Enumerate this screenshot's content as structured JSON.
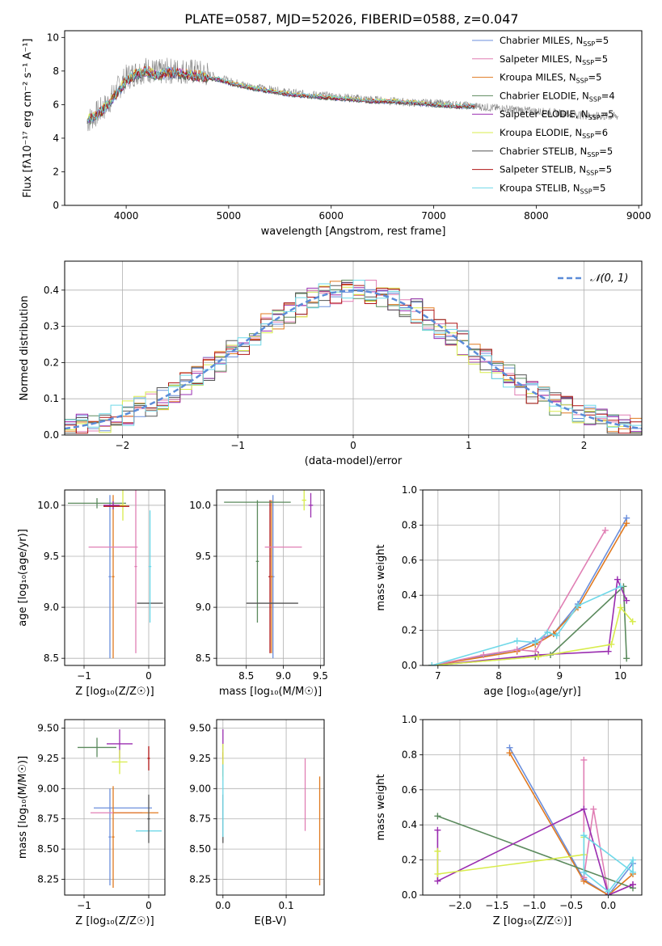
{
  "title": "PLATE=0587, MJD=52026, FIBERID=0588, z=0.047",
  "colors": {
    "Chabrier MILES": "#6b8fdc",
    "Salpeter MILES": "#e07fb4",
    "Kroupa MILES": "#e0791f",
    "Chabrier ELODIE": "#5b8a5d",
    "Salpeter ELODIE": "#9a2db0",
    "Kroupa ELODIE": "#d8ec4c",
    "Chabrier STELIB": "#555555",
    "Salpeter STELIB": "#b01515",
    "Kroupa STELIB": "#6fd8e8",
    "grid": "#b0b0b0"
  },
  "chart_data": [
    {
      "id": "spectrum",
      "type": "line",
      "xlabel": "wavelength [Angstrom, rest frame]",
      "ylabel": "Flux [f_λ10^-17 erg cm^-2 s^-1 A^-1]",
      "xlim": [
        3400,
        9030
      ],
      "ylim": [
        0,
        10.4
      ],
      "xticks": [
        4000,
        5000,
        6000,
        7000,
        8000,
        9000
      ],
      "yticks": [
        0,
        2,
        4,
        6,
        8,
        10
      ],
      "grid": false,
      "legend_position": "top-right",
      "legend": [
        {
          "model": "Chabrier MILES",
          "text": "Chabrier MILES, N",
          "sub": "SSP",
          "tail": "=5"
        },
        {
          "model": "Salpeter MILES",
          "text": "Salpeter MILES, N",
          "sub": "SSP",
          "tail": "=5"
        },
        {
          "model": "Kroupa MILES",
          "text": "Kroupa MILES, N",
          "sub": "SSP",
          "tail": "=5"
        },
        {
          "model": "Chabrier ELODIE",
          "text": "Chabrier ELODIE, N",
          "sub": "SSP",
          "tail": "=4"
        },
        {
          "model": "Salpeter ELODIE",
          "text": "Salpeter ELODIE, N",
          "sub": "SSP",
          "tail": "=5"
        },
        {
          "model": "Kroupa ELODIE",
          "text": "Kroupa ELODIE, N",
          "sub": "SSP",
          "tail": "=6"
        },
        {
          "model": "Chabrier STELIB",
          "text": "Chabrier STELIB, N",
          "sub": "SSP",
          "tail": "=5"
        },
        {
          "model": "Salpeter STELIB",
          "text": "Salpeter STELIB, N",
          "sub": "SSP",
          "tail": "=5"
        },
        {
          "model": "Kroupa STELIB",
          "text": "Kroupa STELIB, N",
          "sub": "SSP",
          "tail": "=5"
        }
      ],
      "data_x": [
        3620,
        3700,
        3800,
        3900,
        4000,
        4100,
        4200,
        4300,
        4400,
        4500,
        4600,
        4700,
        4800,
        4900,
        5000,
        5200,
        5400,
        5600,
        5800,
        6000,
        6200,
        6400,
        6600,
        6800,
        7000,
        7200,
        7400,
        7600,
        7800,
        8000,
        8200,
        8400,
        8600,
        8800
      ],
      "data_y": [
        5.0,
        5.4,
        5.9,
        6.8,
        7.6,
        7.9,
        8.1,
        7.9,
        8.0,
        8.0,
        8.0,
        7.9,
        7.8,
        7.6,
        7.4,
        7.1,
        6.9,
        6.7,
        6.6,
        6.5,
        6.4,
        6.3,
        6.2,
        6.1,
        6.1,
        6.0,
        5.9,
        5.8,
        5.7,
        5.6,
        5.5,
        5.4,
        5.3,
        5.3
      ],
      "model_x": [
        3620,
        3700,
        3800,
        3900,
        4000,
        4100,
        4200,
        4300,
        4400,
        4500,
        4600,
        4700,
        4800,
        4900,
        5000,
        5200,
        5400,
        5600,
        5800,
        6000,
        6200,
        6400,
        6600,
        6800,
        7000,
        7200,
        7400
      ],
      "model_y": [
        5.1,
        5.3,
        5.8,
        6.6,
        7.4,
        7.8,
        8.0,
        7.7,
        7.9,
        7.9,
        7.8,
        7.7,
        7.6,
        7.5,
        7.3,
        7.0,
        6.8,
        6.6,
        6.5,
        6.4,
        6.3,
        6.2,
        6.2,
        6.1,
        6.0,
        5.9,
        5.9
      ],
      "data_color": "#888888"
    },
    {
      "id": "residuals",
      "type": "histogram",
      "xlabel": "(data-model)/error",
      "ylabel": "Normed distribution",
      "xlim": [
        -2.5,
        2.5
      ],
      "ylim": [
        0,
        0.48
      ],
      "xticks": [
        -2,
        -1,
        0,
        1,
        2
      ],
      "yticks": [
        0.0,
        0.1,
        0.2,
        0.3,
        0.4
      ],
      "grid": true,
      "legend_position": "top-right",
      "legend_label": "𝒩(0, 1)",
      "gaussian": {
        "mean": 0,
        "sigma": 1,
        "color": "#5b8bd8"
      },
      "bin_width": 0.1
    },
    {
      "id": "age-vs-Z",
      "type": "errorbar",
      "xlabel": "Z [log10(Z/Z☉)]",
      "ylabel": "age [log10(age/yr)]",
      "xlim": [
        -1.3,
        0.25
      ],
      "ylim": [
        8.43,
        10.15
      ],
      "xticks": [
        -1,
        0
      ],
      "yticks": [
        8.5,
        9.0,
        9.5,
        10.0
      ],
      "grid": true,
      "points": [
        {
          "model": "Chabrier MILES",
          "x": -0.6,
          "xerr": 0.02,
          "y": 9.3,
          "yerr": 0.8
        },
        {
          "model": "Kroupa MILES",
          "x": -0.55,
          "xerr": 0.02,
          "y": 9.3,
          "yerr": 0.8
        },
        {
          "model": "Salpeter MILES",
          "x": -0.55,
          "xerr": 0.38,
          "y": 9.59,
          "yerr": 0.0
        },
        {
          "model": "Salpeter MILES",
          "x": -0.2,
          "xerr": 0.02,
          "y": 9.4,
          "yerr": 0.85
        },
        {
          "model": "Chabrier ELODIE",
          "x": -0.8,
          "xerr": 0.45,
          "y": 10.02,
          "yerr": 0.05
        },
        {
          "model": "Salpeter ELODIE",
          "x": -0.55,
          "xerr": 0.15,
          "y": 10.0,
          "yerr": 0.04
        },
        {
          "model": "Kroupa ELODIE",
          "x": -0.4,
          "xerr": 0.05,
          "y": 10.0,
          "yerr": 0.15
        },
        {
          "model": "Chabrier STELIB",
          "x": 0.02,
          "xerr": 0.2,
          "y": 9.04,
          "yerr": 0.0
        },
        {
          "model": "Kroupa STELIB",
          "x": 0.02,
          "xerr": 0.02,
          "y": 9.4,
          "yerr": 0.55
        },
        {
          "model": "Salpeter STELIB",
          "x": -0.5,
          "xerr": 0.2,
          "y": 9.99,
          "yerr": 0.0
        }
      ]
    },
    {
      "id": "age-vs-mass",
      "type": "errorbar",
      "xlabel": "mass [log10(M/M☉)]",
      "ylabel": "",
      "xlim": [
        8.1,
        9.55
      ],
      "ylim": [
        8.43,
        10.15
      ],
      "xticks": [
        8.5,
        9.0,
        9.5
      ],
      "yticks": [
        8.5,
        9.0,
        9.5,
        10.0
      ],
      "grid": true,
      "points": [
        {
          "model": "Chabrier MILES",
          "x": 8.86,
          "xerr": 0.02,
          "y": 9.3,
          "yerr": 0.8
        },
        {
          "model": "Salpeter STELIB",
          "x": 8.82,
          "xerr": 0.02,
          "y": 9.3,
          "yerr": 0.75
        },
        {
          "model": "Kroupa MILES",
          "x": 8.84,
          "xerr": 0.02,
          "y": 9.3,
          "yerr": 0.75
        },
        {
          "model": "Chabrier ELODIE",
          "x": 8.65,
          "xerr": 0.02,
          "y": 9.45,
          "yerr": 0.6
        },
        {
          "model": "Salpeter MILES",
          "x": 9.0,
          "xerr": 0.25,
          "y": 9.59,
          "yerr": 0.0
        },
        {
          "model": "Chabrier STELIB",
          "x": 8.85,
          "xerr": 0.35,
          "y": 9.04,
          "yerr": 0.0
        },
        {
          "model": "Salpeter ELODIE",
          "x": 9.37,
          "xerr": 0.03,
          "y": 10.0,
          "yerr": 0.12
        },
        {
          "model": "Kroupa ELODIE",
          "x": 9.28,
          "xerr": 0.03,
          "y": 10.05,
          "yerr": 0.1
        },
        {
          "model": "Chabrier ELODIE",
          "x": 8.65,
          "xerr": 0.45,
          "y": 10.03,
          "yerr": 0.0
        }
      ]
    },
    {
      "id": "weight-vs-age",
      "type": "line",
      "xlabel": "age [log10(age/yr)]",
      "ylabel": "mass weight",
      "xlim": [
        6.75,
        10.35
      ],
      "ylim": [
        0,
        1.0
      ],
      "xticks": [
        7,
        8,
        9,
        10
      ],
      "yticks": [
        0.0,
        0.2,
        0.4,
        0.6,
        0.8,
        1.0
      ],
      "grid": true,
      "series": [
        {
          "model": "Chabrier MILES",
          "x": [
            6.9,
            8.3,
            8.6,
            8.9,
            9.3,
            10.1
          ],
          "y": [
            0.0,
            0.09,
            0.14,
            0.18,
            0.35,
            0.84
          ]
        },
        {
          "model": "Kroupa MILES",
          "x": [
            6.9,
            8.3,
            8.6,
            8.9,
            9.3,
            10.1
          ],
          "y": [
            0.0,
            0.08,
            0.12,
            0.18,
            0.33,
            0.81
          ]
        },
        {
          "model": "Salpeter MILES",
          "x": [
            6.9,
            7.75,
            8.3,
            8.6,
            9.75
          ],
          "y": [
            0.0,
            0.06,
            0.09,
            0.08,
            0.77
          ]
        },
        {
          "model": "Chabrier ELODIE",
          "x": [
            6.9,
            8.6,
            8.85,
            10.05,
            10.1
          ],
          "y": [
            0.0,
            0.05,
            0.06,
            0.45,
            0.04
          ]
        },
        {
          "model": "Salpeter ELODIE",
          "x": [
            6.9,
            8.65,
            9.8,
            9.95,
            10.1
          ],
          "y": [
            0.0,
            0.06,
            0.08,
            0.49,
            0.37
          ]
        },
        {
          "model": "Kroupa ELODIE",
          "x": [
            6.9,
            8.65,
            9.85,
            10.0,
            10.2
          ],
          "y": [
            0.0,
            0.05,
            0.12,
            0.33,
            0.25
          ]
        },
        {
          "model": "Kroupa STELIB",
          "x": [
            6.9,
            8.3,
            8.6,
            8.8,
            8.95,
            9.3,
            10.0
          ],
          "y": [
            0.0,
            0.14,
            0.13,
            0.19,
            0.17,
            0.34,
            0.45
          ]
        }
      ]
    },
    {
      "id": "mass-vs-Z",
      "type": "errorbar",
      "xlabel": "Z [log10(Z/Z☉)]",
      "ylabel": "mass [log10(M/M☉)]",
      "xlim": [
        -1.3,
        0.25
      ],
      "ylim": [
        8.12,
        9.57
      ],
      "xticks": [
        -1,
        0
      ],
      "yticks": [
        8.25,
        8.5,
        8.75,
        9.0,
        9.25,
        9.5
      ],
      "grid": true,
      "points": [
        {
          "model": "Chabrier MILES",
          "x": -0.6,
          "xerr": 0.02,
          "y": 8.6,
          "yerr": 0.4
        },
        {
          "model": "Chabrier MILES",
          "x": -0.4,
          "xerr": 0.45,
          "y": 8.84,
          "yerr": 0.0
        },
        {
          "model": "Kroupa MILES",
          "x": -0.55,
          "xerr": 0.02,
          "y": 8.6,
          "yerr": 0.42
        },
        {
          "model": "Salpeter MILES",
          "x": -0.5,
          "xerr": 0.4,
          "y": 8.8,
          "yerr": 0.0
        },
        {
          "model": "Kroupa MILES",
          "x": -0.2,
          "xerr": 0.35,
          "y": 8.8,
          "yerr": 0.0
        },
        {
          "model": "Chabrier ELODIE",
          "x": -0.8,
          "xerr": 0.3,
          "y": 9.34,
          "yerr": 0.08
        },
        {
          "model": "Salpeter ELODIE",
          "x": -0.45,
          "xerr": 0.2,
          "y": 9.37,
          "yerr": 0.12
        },
        {
          "model": "Kroupa ELODIE",
          "x": -0.45,
          "xerr": 0.12,
          "y": 9.22,
          "yerr": 0.1
        },
        {
          "model": "Salpeter STELIB",
          "x": 0.0,
          "xerr": 0.02,
          "y": 9.25,
          "yerr": 0.1
        },
        {
          "model": "Kroupa STELIB",
          "x": 0.0,
          "xerr": 0.2,
          "y": 8.65,
          "yerr": 0.0
        },
        {
          "model": "Chabrier STELIB",
          "x": 0.0,
          "xerr": 0.02,
          "y": 8.75,
          "yerr": 0.2
        }
      ]
    },
    {
      "id": "mass-vs-EBV",
      "type": "errorbar",
      "xlabel": "E(B-V)",
      "ylabel": "",
      "xlim": [
        -0.01,
        0.16
      ],
      "ylim": [
        8.12,
        9.57
      ],
      "xticks": [
        0.0,
        0.1
      ],
      "yticks": [
        8.25,
        8.5,
        8.75,
        9.0,
        9.25,
        9.5
      ],
      "grid": true,
      "points": [
        {
          "model": "Salpeter ELODIE",
          "x": 0.0,
          "xerr": 0.0,
          "y": 9.37,
          "yerr": 0.12
        },
        {
          "model": "Salpeter STELIB",
          "x": 0.0,
          "xerr": 0.0,
          "y": 9.2,
          "yerr": 0.1
        },
        {
          "model": "Kroupa ELODIE",
          "x": 0.0,
          "xerr": 0.0,
          "y": 9.22,
          "yerr": 0.15
        },
        {
          "model": "Chabrier STELIB",
          "x": 0.0,
          "xerr": 0.0,
          "y": 8.75,
          "yerr": 0.2
        },
        {
          "model": "Kroupa STELIB",
          "x": 0.0,
          "xerr": 0.0,
          "y": 8.9,
          "yerr": 0.3
        },
        {
          "model": "Salpeter MILES",
          "x": 0.13,
          "xerr": 0.0,
          "y": 8.95,
          "yerr": 0.3
        },
        {
          "model": "Kroupa MILES",
          "x": 0.153,
          "xerr": 0.0,
          "y": 8.65,
          "yerr": 0.45
        }
      ]
    },
    {
      "id": "weight-vs-Z",
      "type": "line",
      "xlabel": "Z [log10(Z/Z☉)]",
      "ylabel": "mass weight",
      "xlim": [
        -2.5,
        0.45
      ],
      "ylim": [
        0,
        1.0
      ],
      "xticks": [
        -2.0,
        -1.5,
        -1.0,
        -0.5,
        0.0
      ],
      "yticks": [
        0.0,
        0.2,
        0.4,
        0.6,
        0.8,
        1.0
      ],
      "grid": true,
      "series": [
        {
          "model": "Chabrier MILES",
          "x": [
            -1.33,
            -0.33,
            0.0,
            0.33
          ],
          "y": [
            0.84,
            0.09,
            0.0,
            0.18
          ]
        },
        {
          "model": "Kroupa MILES",
          "x": [
            -1.33,
            -0.33,
            0.0,
            0.33
          ],
          "y": [
            0.81,
            0.08,
            0.0,
            0.12
          ]
        },
        {
          "model": "Salpeter MILES",
          "x": [
            -0.33,
            -0.33,
            -0.2,
            0.0,
            0.33
          ],
          "y": [
            0.77,
            0.1,
            0.49,
            0.0,
            0.06
          ]
        },
        {
          "model": "Chabrier ELODIE",
          "x": [
            -2.3,
            0.33
          ],
          "y": [
            0.45,
            0.04
          ]
        },
        {
          "model": "Salpeter ELODIE",
          "x": [
            -2.3,
            -2.3,
            -0.33,
            0.0,
            0.33
          ],
          "y": [
            0.37,
            0.08,
            0.49,
            0.0,
            0.06
          ]
        },
        {
          "model": "Kroupa ELODIE",
          "x": [
            -2.3,
            -2.3,
            -0.33,
            -0.33
          ],
          "y": [
            0.25,
            0.12,
            0.23,
            0.33
          ]
        },
        {
          "model": "Kroupa STELIB",
          "x": [
            -0.33,
            -0.33,
            0.0,
            0.33,
            0.33,
            -0.33
          ],
          "y": [
            0.34,
            0.13,
            0.02,
            0.2,
            0.13,
            0.34
          ]
        }
      ]
    }
  ]
}
